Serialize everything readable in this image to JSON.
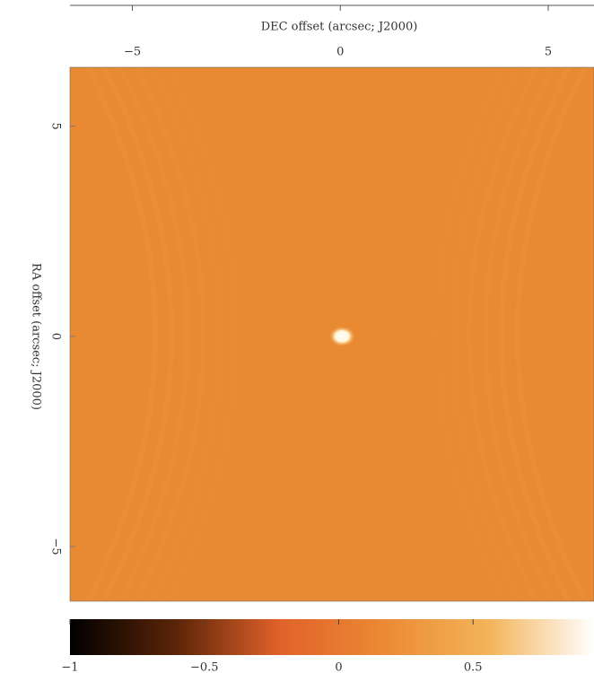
{
  "chart_data": {
    "type": "image",
    "xlabel": "DEC offset (arcsec; J2000)",
    "ylabel": "RA offset (arcsec; J2000)",
    "xlim": [
      -6.5,
      6.1
    ],
    "xticks": [
      {
        "value": -5,
        "label": "−5"
      },
      0,
      5
    ],
    "ylim": [
      -6.3,
      6.4
    ],
    "yticks": [
      5,
      0,
      {
        "value": -5,
        "label": "−5"
      }
    ],
    "clim": [
      -1,
      0.95
    ],
    "cticks": [
      {
        "value": -1,
        "label": "−1"
      },
      {
        "value": -0.5,
        "label": "−0.5"
      },
      0,
      0.5
    ],
    "colormap": [
      "#000000",
      "#5a2408",
      "#e0622a",
      "#eb8a34",
      "#f3b45a",
      "#ffffff"
    ],
    "background": "#e98a33"
  }
}
